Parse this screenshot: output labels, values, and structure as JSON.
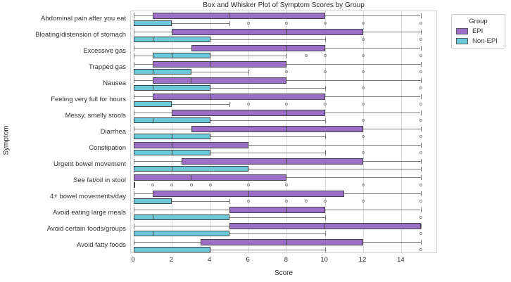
{
  "title": "Box and Whisker Plot of Symptom Scores by Group",
  "axes": {
    "xlabel": "Score",
    "ylabel": "Symptom",
    "xticks": [
      0,
      2,
      4,
      6,
      8,
      10,
      12,
      14
    ],
    "xlim": [
      -0.15,
      15.9
    ],
    "grid": "vertical"
  },
  "legend": {
    "title": "Group",
    "position": "upper-right-outside",
    "entries": [
      {
        "label": "EPI",
        "color": "#9b6ec8"
      },
      {
        "label": "Non-EPI",
        "color": "#6cc9da"
      }
    ]
  },
  "colors": {
    "epi_fill": "#9b6ec8",
    "non_epi_fill": "#6cc9da",
    "box_edge": "#454545",
    "whisker": "#7a7a7a",
    "flier": "#8c8c8c",
    "grid": "#dcdcdc"
  },
  "chart_data": {
    "type": "boxplot",
    "orientation": "horizontal",
    "series_names": [
      "EPI",
      "Non-EPI"
    ],
    "categories": [
      "Abdominal pain after you eat",
      "Bloating/distension of stomach",
      "Excessive gas",
      "Trapped gas",
      "Nausea",
      "Feeling very full for hours",
      "Messy, smelly stools",
      "Diarrhea",
      "Constipation",
      "Urgent bowel movement",
      "See fat/oil in stool",
      "4+ bowel movements/day",
      "Avoid eating large meals",
      "Avoid certain foods/groups",
      "Avoid fatty foods"
    ],
    "rows": [
      {
        "symptom": "Abdominal pain after you eat",
        "epi": {
          "whislo": 0,
          "q1": 1,
          "med": 5,
          "q3": 10,
          "whishi": 15,
          "fliers": []
        },
        "non_epi": {
          "whislo": 0,
          "q1": 0,
          "med": 0,
          "q3": 2,
          "whishi": 5,
          "fliers": [
            6,
            8,
            10,
            12,
            15
          ]
        }
      },
      {
        "symptom": "Bloating/distension of stomach",
        "epi": {
          "whislo": 0,
          "q1": 2,
          "med": 8,
          "q3": 12,
          "whishi": 15,
          "fliers": []
        },
        "non_epi": {
          "whislo": 0,
          "q1": 0,
          "med": 1,
          "q3": 4,
          "whishi": 10,
          "fliers": [
            12,
            15
          ]
        }
      },
      {
        "symptom": "Excessive gas",
        "epi": {
          "whislo": 0,
          "q1": 3,
          "med": 8,
          "q3": 10,
          "whishi": 15,
          "fliers": []
        },
        "non_epi": {
          "whislo": 0,
          "q1": 1,
          "med": 2,
          "q3": 4,
          "whishi": 8,
          "fliers": [
            9,
            10,
            12,
            15
          ]
        }
      },
      {
        "symptom": "Trapped gas",
        "epi": {
          "whislo": 0,
          "q1": 1,
          "med": 4,
          "q3": 8,
          "whishi": 15,
          "fliers": []
        },
        "non_epi": {
          "whislo": 0,
          "q1": 0,
          "med": 1,
          "q3": 3,
          "whishi": 6,
          "fliers": [
            8,
            10,
            12,
            15
          ]
        }
      },
      {
        "symptom": "Nausea",
        "epi": {
          "whislo": 0,
          "q1": 1,
          "med": 3,
          "q3": 8,
          "whishi": 15,
          "fliers": []
        },
        "non_epi": {
          "whislo": 0,
          "q1": 0,
          "med": 1,
          "q3": 4,
          "whishi": 10,
          "fliers": [
            12,
            15
          ]
        }
      },
      {
        "symptom": "Feeling very full for hours",
        "epi": {
          "whislo": 0,
          "q1": 1,
          "med": 4,
          "q3": 10,
          "whishi": 15,
          "fliers": []
        },
        "non_epi": {
          "whislo": 0,
          "q1": 0,
          "med": 0,
          "q3": 2,
          "whishi": 5,
          "fliers": [
            6,
            8,
            10,
            12,
            15
          ]
        }
      },
      {
        "symptom": "Messy, smelly stools",
        "epi": {
          "whislo": 0,
          "q1": 2,
          "med": 8,
          "q3": 10,
          "whishi": 15,
          "fliers": []
        },
        "non_epi": {
          "whislo": 0,
          "q1": 0,
          "med": 1,
          "q3": 4,
          "whishi": 10,
          "fliers": [
            12,
            15
          ]
        }
      },
      {
        "symptom": "Diarrhea",
        "epi": {
          "whislo": 0,
          "q1": 3,
          "med": 8,
          "q3": 12,
          "whishi": 15,
          "fliers": []
        },
        "non_epi": {
          "whislo": 0,
          "q1": 0,
          "med": 2,
          "q3": 4,
          "whishi": 10,
          "fliers": [
            12,
            15
          ]
        }
      },
      {
        "symptom": "Constipation",
        "epi": {
          "whislo": 0,
          "q1": 0,
          "med": 2,
          "q3": 6,
          "whishi": 15,
          "fliers": []
        },
        "non_epi": {
          "whislo": 0,
          "q1": 0,
          "med": 2,
          "q3": 4,
          "whishi": 10,
          "fliers": [
            12,
            15
          ]
        }
      },
      {
        "symptom": "Urgent bowel movement",
        "epi": {
          "whislo": 0,
          "q1": 2.5,
          "med": 8,
          "q3": 12,
          "whishi": 15,
          "fliers": []
        },
        "non_epi": {
          "whislo": 0,
          "q1": 0,
          "med": 2,
          "q3": 6,
          "whishi": 15,
          "fliers": []
        }
      },
      {
        "symptom": "See fat/oil in stool",
        "epi": {
          "whislo": 0,
          "q1": 0,
          "med": 3,
          "q3": 8,
          "whishi": 15,
          "fliers": []
        },
        "non_epi": {
          "whislo": 0,
          "q1": 0,
          "med": 0,
          "q3": 0,
          "whishi": 0,
          "fliers": [
            1,
            2,
            3,
            4,
            6,
            8,
            12,
            15
          ]
        }
      },
      {
        "symptom": "4+ bowel movements/day",
        "epi": {
          "whislo": 0,
          "q1": 1,
          "med": 6,
          "q3": 11,
          "whishi": 15,
          "fliers": []
        },
        "non_epi": {
          "whislo": 0,
          "q1": 0,
          "med": 0,
          "q3": 2,
          "whishi": 5,
          "fliers": [
            6,
            8,
            9,
            10,
            12,
            15
          ]
        }
      },
      {
        "symptom": "Avoid eating large meals",
        "epi": {
          "whislo": 0,
          "q1": 5,
          "med": 8,
          "q3": 10,
          "whishi": 15,
          "fliers": []
        },
        "non_epi": {
          "whislo": 0,
          "q1": 0,
          "med": 1,
          "q3": 5,
          "whishi": 10,
          "fliers": [
            15
          ]
        }
      },
      {
        "symptom": "Avoid certain foods/groups",
        "epi": {
          "whislo": 0,
          "q1": 5,
          "med": 10,
          "q3": 15,
          "whishi": 15,
          "fliers": []
        },
        "non_epi": {
          "whislo": 0,
          "q1": 0,
          "med": 1,
          "q3": 5,
          "whishi": 10,
          "fliers": [
            15
          ]
        }
      },
      {
        "symptom": "Avoid fatty foods",
        "epi": {
          "whislo": 0,
          "q1": 3.5,
          "med": 8,
          "q3": 12,
          "whishi": 15,
          "fliers": []
        },
        "non_epi": {
          "whislo": 0,
          "q1": 0,
          "med": 0,
          "q3": 4,
          "whishi": 10,
          "fliers": [
            15
          ]
        }
      }
    ]
  }
}
